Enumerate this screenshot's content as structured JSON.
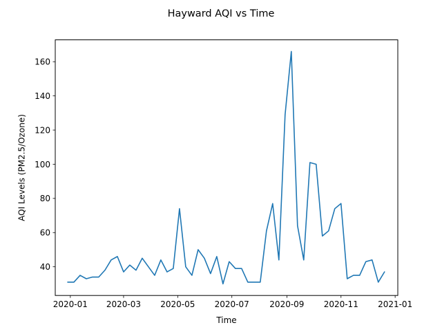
{
  "chart_data": {
    "type": "line",
    "title": "Hayward AQI vs Time",
    "xlabel": "Time",
    "ylabel": "AQI Levels (PM2.5/Ozone)",
    "x_ticks": [
      "2020-01",
      "2020-03",
      "2020-05",
      "2020-07",
      "2020-09",
      "2020-11",
      "2021-01"
    ],
    "y_ticks": [
      40,
      60,
      80,
      100,
      120,
      140,
      160
    ],
    "xlim": [
      "2019-12-15",
      "2021-01-04"
    ],
    "ylim": [
      23.2,
      172.8
    ],
    "grid": false,
    "line_color": "#1f77b4",
    "series": [
      {
        "x": [
          "2019-12-29",
          "2020-01-05",
          "2020-01-12",
          "2020-01-19",
          "2020-01-26",
          "2020-02-02",
          "2020-02-09",
          "2020-02-16",
          "2020-02-23",
          "2020-03-01",
          "2020-03-08",
          "2020-03-15",
          "2020-03-22",
          "2020-03-29",
          "2020-04-05",
          "2020-04-12",
          "2020-04-19",
          "2020-04-26",
          "2020-05-03",
          "2020-05-10",
          "2020-05-17",
          "2020-05-24",
          "2020-05-31",
          "2020-06-07",
          "2020-06-14",
          "2020-06-21",
          "2020-06-28",
          "2020-07-05",
          "2020-07-12",
          "2020-07-19",
          "2020-07-26",
          "2020-08-02",
          "2020-08-09",
          "2020-08-16",
          "2020-08-23",
          "2020-08-30",
          "2020-09-06",
          "2020-09-13",
          "2020-09-20",
          "2020-09-27",
          "2020-10-04",
          "2020-10-11",
          "2020-10-18",
          "2020-10-25",
          "2020-11-01",
          "2020-11-08",
          "2020-11-15",
          "2020-11-22",
          "2020-11-29",
          "2020-12-06",
          "2020-12-13",
          "2020-12-20"
        ],
        "y": [
          31,
          31,
          35,
          33,
          34,
          34,
          38,
          44,
          46,
          37,
          41,
          38,
          45,
          40,
          35,
          44,
          37,
          39,
          74,
          40,
          35,
          50,
          45,
          36,
          46,
          30,
          43,
          39,
          39,
          31,
          31,
          31,
          61,
          77,
          44,
          129,
          166,
          64,
          44,
          101,
          100,
          58,
          61,
          74,
          77,
          33,
          35,
          35,
          43,
          44,
          31,
          37
        ]
      }
    ]
  }
}
